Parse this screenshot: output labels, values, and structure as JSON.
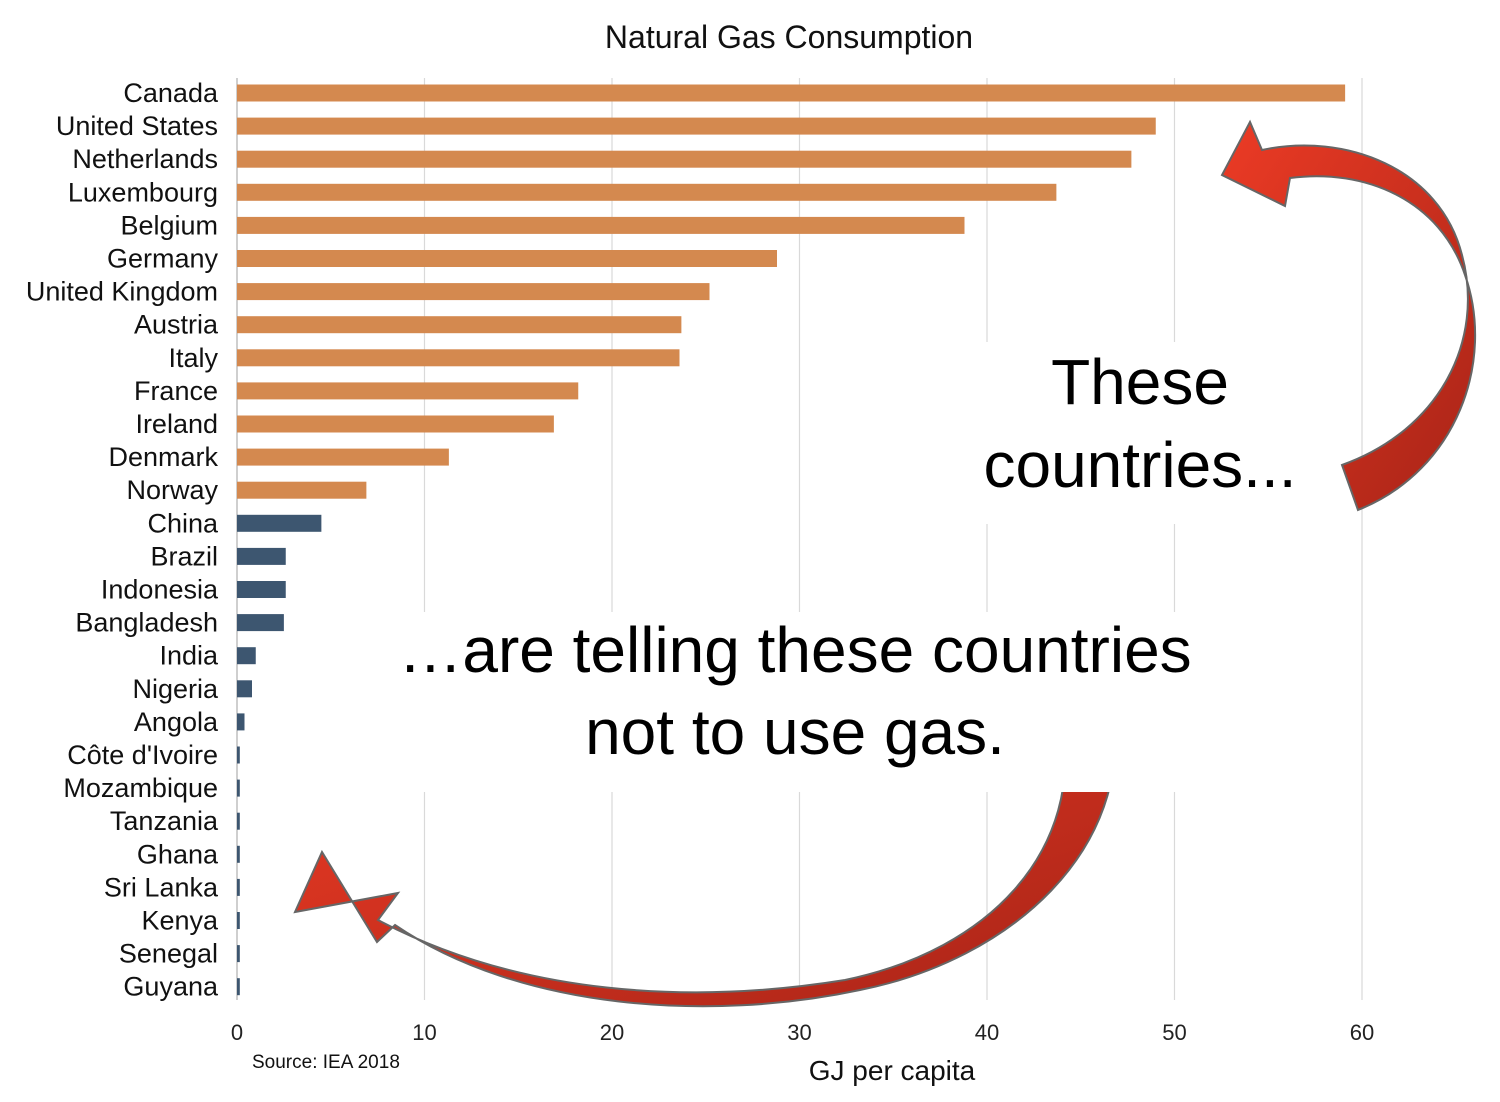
{
  "chart_data": {
    "type": "bar",
    "orientation": "horizontal",
    "title": "Natural Gas Consumption",
    "xlabel": "GJ per capita",
    "ylabel": "",
    "xlim": [
      0,
      66
    ],
    "x_ticks": [
      0,
      10,
      20,
      30,
      40,
      50,
      60
    ],
    "grid": "vertical",
    "categories": [
      "Canada",
      "United States",
      "Netherlands",
      "Luxembourg",
      "Belgium",
      "Germany",
      "United Kingdom",
      "Austria",
      "Italy",
      "France",
      "Ireland",
      "Denmark",
      "Norway",
      "China",
      "Brazil",
      "Indonesia",
      "Bangladesh",
      "India",
      "Nigeria",
      "Angola",
      "Côte d'Ivoire",
      "Mozambique",
      "Tanzania",
      "Ghana",
      "Sri Lanka",
      "Kenya",
      "Senegal",
      "Guyana"
    ],
    "values": [
      59.1,
      49.0,
      47.7,
      43.7,
      38.8,
      28.8,
      25.2,
      23.7,
      23.6,
      18.2,
      16.9,
      11.3,
      6.9,
      4.5,
      2.6,
      2.6,
      2.5,
      1.0,
      0.8,
      0.4,
      0.15,
      0.15,
      0.15,
      0.15,
      0.15,
      0.15,
      0.15,
      0.15
    ],
    "bar_colors": [
      "#d4894f",
      "#d4894f",
      "#d4894f",
      "#d4894f",
      "#d4894f",
      "#d4894f",
      "#d4894f",
      "#d4894f",
      "#d4894f",
      "#d4894f",
      "#d4894f",
      "#d4894f",
      "#d4894f",
      "#3d5670",
      "#3d5670",
      "#3d5670",
      "#3d5670",
      "#3d5670",
      "#3d5670",
      "#3d5670",
      "#3d5670",
      "#3d5670",
      "#3d5670",
      "#3d5670",
      "#3d5670",
      "#3d5670",
      "#3d5670",
      "#3d5670"
    ],
    "source": "Source: IEA 2018",
    "annotations": {
      "top_line1": "These",
      "top_line2": "countries...",
      "middle_line1": "…are telling these countries",
      "middle_line2": "not to use gas."
    },
    "arrow_color": "#d63a28"
  }
}
